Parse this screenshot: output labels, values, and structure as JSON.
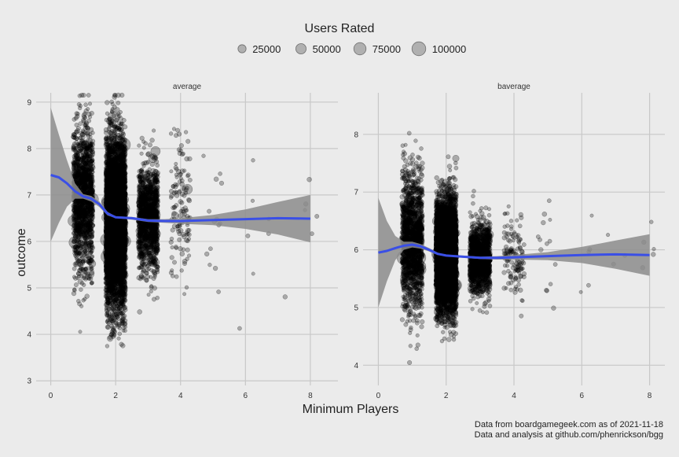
{
  "chart_data": {
    "type": "scatter",
    "legend": {
      "title": "Users Rated",
      "position": "top",
      "sizes": [
        25000,
        50000,
        75000,
        100000
      ],
      "labels": [
        "25000",
        "50000",
        "75000",
        "100000"
      ]
    },
    "xlabel": "Minimum Players",
    "ylabel": "outcome",
    "caption": [
      "Data from boardgamegeek.com as of 2021-11-18",
      "Data and analysis at github.com/phenrickson/bgg"
    ],
    "grid": true,
    "colors": {
      "background": "#ebebeb",
      "grid": "#c8c8c8",
      "points": "#000000",
      "smooth": "#3a4fe6",
      "ribbon": "#8c8c8c"
    },
    "panels": [
      {
        "title": "average",
        "x_ticks": [
          0,
          2,
          4,
          6,
          8
        ],
        "x_tick_labels": [
          "0",
          "2",
          "4",
          "6",
          "8"
        ],
        "xlim": [
          -0.45,
          8.85
        ],
        "y_ticks": [
          3,
          4,
          5,
          6,
          7,
          8,
          9
        ],
        "y_tick_labels": [
          "3",
          "4",
          "5",
          "6",
          "7",
          "8",
          "9"
        ],
        "ylim": [
          2.9,
          9.2
        ],
        "clusters": [
          {
            "min_players": 1,
            "n_points": 1500,
            "mean": 6.95,
            "sd": 0.75
          },
          {
            "min_players": 2,
            "n_points": 6000,
            "mean": 6.4,
            "sd": 0.85
          },
          {
            "min_players": 3,
            "n_points": 1300,
            "mean": 6.5,
            "sd": 0.55
          },
          {
            "min_players": 4,
            "n_points": 130,
            "mean": 6.6,
            "sd": 0.8
          },
          {
            "min_players": 5,
            "n_points": 14,
            "mean": 6.5,
            "sd": 0.8
          },
          {
            "min_players": 6,
            "n_points": 5,
            "mean": 6.3,
            "sd": 0.8
          },
          {
            "min_players": 7,
            "n_points": 3,
            "mean": 6.0,
            "sd": 0.8
          },
          {
            "min_players": 8,
            "n_points": 5,
            "mean": 6.6,
            "sd": 0.4
          }
        ],
        "smooth": {
          "x": [
            0,
            0.25,
            0.5,
            0.75,
            1.0,
            1.25,
            1.5,
            1.75,
            2.0,
            2.5,
            3.0,
            3.5,
            4.0,
            5.0,
            6.0,
            7.0,
            8.0
          ],
          "y": [
            7.43,
            7.38,
            7.25,
            7.08,
            6.97,
            6.92,
            6.8,
            6.6,
            6.52,
            6.5,
            6.45,
            6.44,
            6.44,
            6.46,
            6.48,
            6.5,
            6.49
          ],
          "lower": [
            6.0,
            6.4,
            6.75,
            6.92,
            6.92,
            6.86,
            6.74,
            6.56,
            6.5,
            6.47,
            6.42,
            6.4,
            6.38,
            6.35,
            6.27,
            6.15,
            5.98
          ],
          "upper": [
            8.88,
            8.3,
            7.75,
            7.25,
            7.02,
            6.98,
            6.86,
            6.64,
            6.54,
            6.53,
            6.48,
            6.48,
            6.5,
            6.57,
            6.69,
            6.85,
            7.0
          ]
        }
      },
      {
        "title": "baverage",
        "x_ticks": [
          0,
          2,
          4,
          6,
          8
        ],
        "x_tick_labels": [
          "0",
          "2",
          "4",
          "6",
          "8"
        ],
        "xlim": [
          -0.45,
          8.45
        ],
        "y_ticks": [
          4,
          5,
          6,
          7,
          8
        ],
        "y_tick_labels": [
          "4",
          "5",
          "6",
          "7",
          "8"
        ],
        "ylim": [
          3.65,
          8.72
        ],
        "clusters": [
          {
            "min_players": 1,
            "n_points": 1500,
            "mean": 6.15,
            "sd": 0.6
          },
          {
            "min_players": 2,
            "n_points": 6000,
            "mean": 5.9,
            "sd": 0.45
          },
          {
            "min_players": 3,
            "n_points": 1300,
            "mean": 5.85,
            "sd": 0.3
          },
          {
            "min_players": 4,
            "n_points": 130,
            "mean": 5.9,
            "sd": 0.35
          },
          {
            "min_players": 5,
            "n_points": 14,
            "mean": 6.0,
            "sd": 0.5
          },
          {
            "min_players": 6,
            "n_points": 5,
            "mean": 5.9,
            "sd": 0.4
          },
          {
            "min_players": 7,
            "n_points": 3,
            "mean": 5.7,
            "sd": 0.3
          },
          {
            "min_players": 8,
            "n_points": 5,
            "mean": 6.1,
            "sd": 0.35
          }
        ],
        "smooth": {
          "x": [
            0,
            0.25,
            0.5,
            0.75,
            1.0,
            1.25,
            1.5,
            1.75,
            2.0,
            2.5,
            3.0,
            3.5,
            4.0,
            5.0,
            6.0,
            7.0,
            8.0
          ],
          "y": [
            5.95,
            5.98,
            6.03,
            6.07,
            6.09,
            6.06,
            6.0,
            5.93,
            5.9,
            5.88,
            5.86,
            5.86,
            5.87,
            5.89,
            5.91,
            5.92,
            5.91
          ],
          "lower": [
            5.0,
            5.45,
            5.82,
            6.0,
            6.04,
            6.02,
            5.97,
            5.91,
            5.89,
            5.86,
            5.84,
            5.83,
            5.83,
            5.82,
            5.77,
            5.67,
            5.55
          ],
          "upper": [
            6.9,
            6.5,
            6.24,
            6.14,
            6.14,
            6.1,
            6.03,
            5.95,
            5.91,
            5.9,
            5.88,
            5.89,
            5.91,
            5.96,
            6.05,
            6.16,
            6.27
          ]
        }
      }
    ]
  }
}
